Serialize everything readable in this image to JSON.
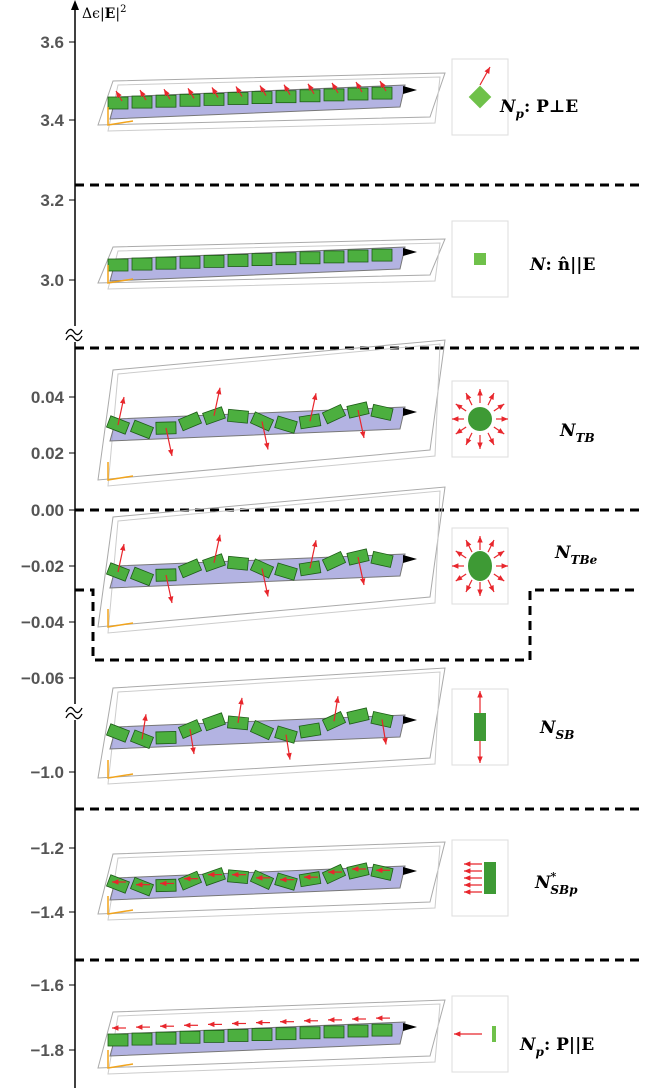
{
  "axis": {
    "label": {
      "prefix": "Δϵ|",
      "bold": "E",
      "suffix": "|",
      "sup": "2"
    },
    "ticks": [
      "3.6",
      "3.4",
      "3.2",
      "3.0",
      "0.04",
      "0.02",
      "0.00",
      "−0.02",
      "−0.04",
      "−0.06",
      "−1.0",
      "−1.2",
      "−1.4",
      "−1.6",
      "−1.8"
    ]
  },
  "phases": [
    {
      "symbol": "N",
      "sub": "p",
      "condition": ":  P⊥E"
    },
    {
      "symbol": "N",
      "condition": ":  n̂||E"
    },
    {
      "symbol": "N",
      "sub": "TB"
    },
    {
      "symbol": "N",
      "sub": "TBe"
    },
    {
      "symbol": "N",
      "sub": "SB"
    },
    {
      "symbol": "N",
      "sup": "*",
      "sub": "SBp"
    },
    {
      "symbol": "N",
      "sub": "p",
      "condition": ":  P||E"
    }
  ]
}
